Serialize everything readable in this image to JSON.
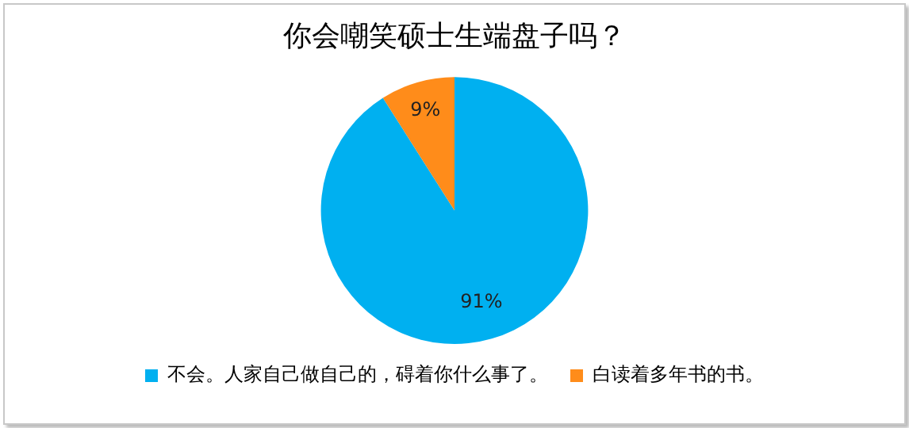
{
  "chart_data": {
    "type": "pie",
    "title": "你会嘲笑硕士生端盘子吗？",
    "categories": [
      "不会。人家自己做自己的，碍着你什么事了。",
      "白读着多年书的书。"
    ],
    "values": [
      91,
      9
    ],
    "colors": [
      "#00b0f0",
      "#ff8c1a"
    ],
    "value_labels": [
      "91%",
      "9%"
    ],
    "legend": "bottom"
  }
}
